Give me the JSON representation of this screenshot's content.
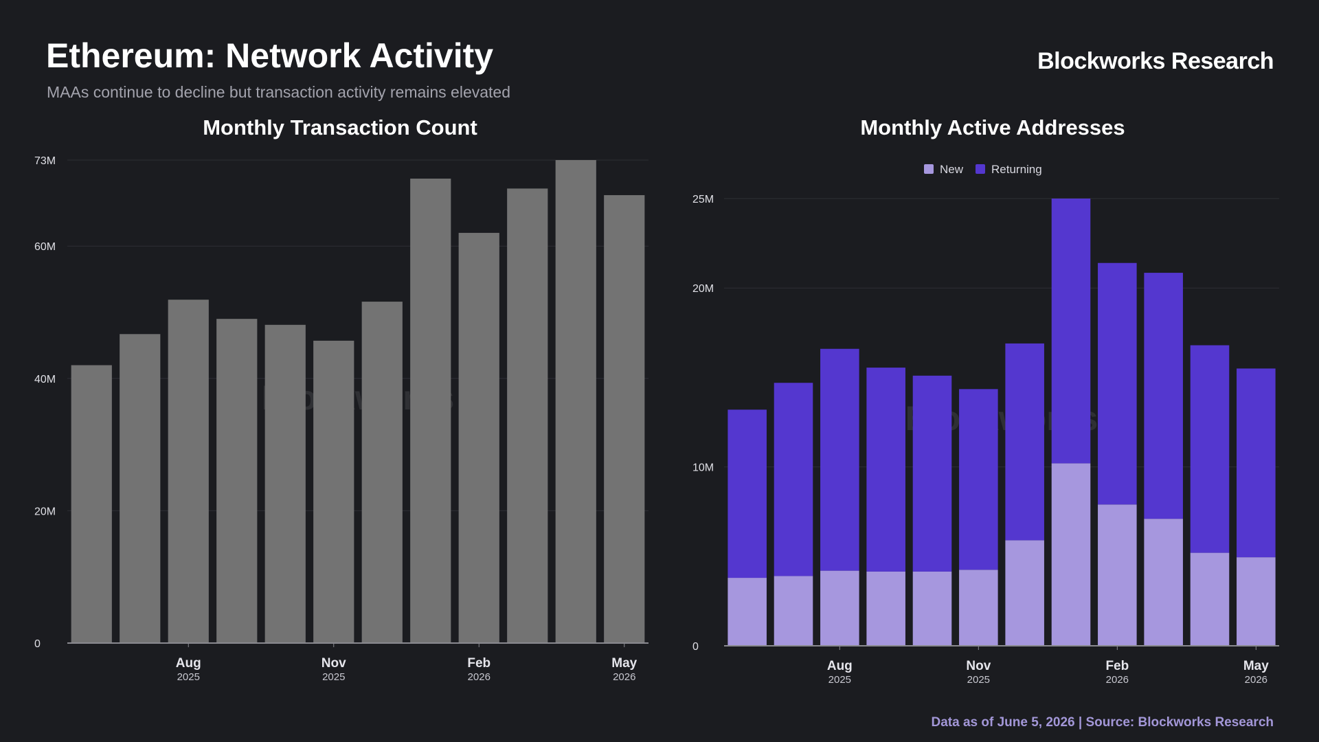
{
  "header": {
    "title": "Ethereum: Network Activity",
    "subtitle": "MAAs continue to decline but transaction activity remains elevated",
    "brand": "Blockworks Research"
  },
  "footer": {
    "note": "Data as of June 5, 2026 | Source: Blockworks Research"
  },
  "colors": {
    "background": "#1b1c20",
    "tx_bar": "#737373",
    "new": "#a697de",
    "returning": "#5437cf",
    "grid": "#2e2f35",
    "axis": "#8a8a90"
  },
  "chart_data": [
    {
      "type": "bar",
      "title": "Monthly Transaction Count",
      "watermark": "Blockworks",
      "y_ticks": [
        {
          "value": 0,
          "label": "0"
        },
        {
          "value": 20000000,
          "label": "20M"
        },
        {
          "value": 40000000,
          "label": "40M"
        },
        {
          "value": 60000000,
          "label": "60M"
        },
        {
          "value": 73000000,
          "label": "73M"
        }
      ],
      "ylim": [
        0,
        73000000
      ],
      "x_ticks": [
        {
          "index": 2,
          "month": "Aug",
          "year": "2025"
        },
        {
          "index": 5,
          "month": "Nov",
          "year": "2025"
        },
        {
          "index": 8,
          "month": "Feb",
          "year": "2026"
        },
        {
          "index": 11,
          "month": "May",
          "year": "2026"
        }
      ],
      "categories": [
        "Jun 2025",
        "Jul 2025",
        "Aug 2025",
        "Sep 2025",
        "Oct 2025",
        "Nov 2025",
        "Dec 2025",
        "Jan 2026",
        "Feb 2026",
        "Mar 2026",
        "Apr 2026",
        "May 2026"
      ],
      "values": [
        42000000,
        46700000,
        51900000,
        49000000,
        48100000,
        45700000,
        51600000,
        70200000,
        62000000,
        68700000,
        73000000,
        67700000
      ],
      "grid": true
    },
    {
      "type": "bar",
      "stacked": true,
      "title": "Monthly Active Addresses",
      "watermark": "Blockworks",
      "legend": {
        "position": "top-center"
      },
      "y_ticks": [
        {
          "value": 0,
          "label": "0"
        },
        {
          "value": 10000000,
          "label": "10M"
        },
        {
          "value": 20000000,
          "label": "20M"
        },
        {
          "value": 25000000,
          "label": "25M"
        }
      ],
      "ylim": [
        0,
        25000000
      ],
      "x_ticks": [
        {
          "index": 2,
          "month": "Aug",
          "year": "2025"
        },
        {
          "index": 5,
          "month": "Nov",
          "year": "2025"
        },
        {
          "index": 8,
          "month": "Feb",
          "year": "2026"
        },
        {
          "index": 11,
          "month": "May",
          "year": "2026"
        }
      ],
      "categories": [
        "Jun 2025",
        "Jul 2025",
        "Aug 2025",
        "Sep 2025",
        "Oct 2025",
        "Nov 2025",
        "Dec 2025",
        "Jan 2026",
        "Feb 2026",
        "Mar 2026",
        "Apr 2026",
        "May 2026"
      ],
      "series": [
        {
          "name": "New",
          "values": [
            3800000,
            3900000,
            4200000,
            4150000,
            4150000,
            4250000,
            5900000,
            10200000,
            7900000,
            7100000,
            5200000,
            4950000
          ]
        },
        {
          "name": "Returning",
          "values": [
            9400000,
            10800000,
            12400000,
            11400000,
            10950000,
            10100000,
            11000000,
            14800000,
            13500000,
            13750000,
            11600000,
            10550000
          ]
        }
      ],
      "grid": true
    }
  ]
}
